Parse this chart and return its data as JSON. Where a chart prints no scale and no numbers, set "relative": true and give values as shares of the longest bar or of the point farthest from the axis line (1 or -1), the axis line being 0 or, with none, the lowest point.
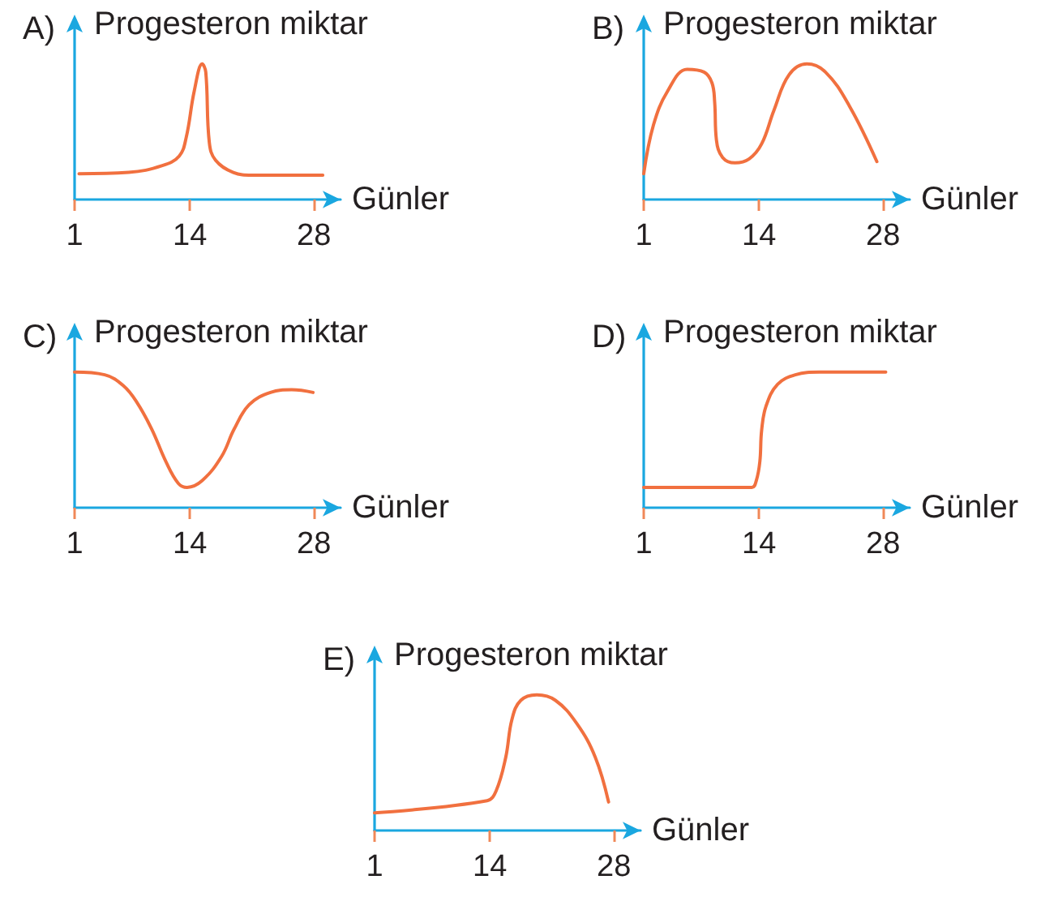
{
  "chart_data": [
    {
      "type": "line",
      "title": "A)",
      "ylabel": "Progesteron miktar",
      "xlabel": "Günler",
      "relative": true,
      "xlim": [
        1,
        31
      ],
      "xticks": [
        1,
        14,
        28
      ],
      "marker": "none",
      "line_style": "solid",
      "color": "#f1703f",
      "x": [
        1.5,
        7.1,
        10.9,
        12.8,
        13.6,
        14.5,
        15.4,
        15.8,
        16.2,
        16.9,
        18.9,
        21.0,
        29.0
      ],
      "values": [
        0.19,
        0.2,
        0.25,
        0.32,
        0.46,
        0.8,
        1.0,
        0.94,
        0.42,
        0.29,
        0.2,
        0.18,
        0.18
      ]
    },
    {
      "type": "line",
      "title": "B)",
      "ylabel": "Progesteron miktar",
      "xlabel": "Günler",
      "relative": true,
      "xlim": [
        1,
        31
      ],
      "xticks": [
        1,
        14,
        28
      ],
      "marker": "none",
      "line_style": "solid",
      "color": "#f1703f",
      "x": [
        1,
        2.1,
        3.7,
        5.9,
        7.8,
        8.7,
        9.0,
        9.2,
        9.9,
        11.3,
        12.9,
        14.3,
        15.7,
        17.4,
        19.4,
        21.5,
        24.2,
        27.3
      ],
      "values": [
        0.19,
        0.55,
        0.8,
        0.96,
        0.94,
        0.86,
        0.72,
        0.44,
        0.31,
        0.27,
        0.3,
        0.41,
        0.66,
        0.92,
        1.0,
        0.94,
        0.69,
        0.28
      ]
    },
    {
      "type": "line",
      "title": "C)",
      "ylabel": "Progesteron miktar",
      "xlabel": "Günler",
      "relative": true,
      "xlim": [
        1,
        31
      ],
      "xticks": [
        1,
        14,
        28
      ],
      "marker": "none",
      "line_style": "solid",
      "color": "#f1703f",
      "x": [
        1,
        4.4,
        6.5,
        8.0,
        9.7,
        11.3,
        12.7,
        13.7,
        15.4,
        17.6,
        19.0,
        20.7,
        23.1,
        25.5,
        27.9
      ],
      "values": [
        1.0,
        0.98,
        0.9,
        0.78,
        0.58,
        0.34,
        0.18,
        0.15,
        0.2,
        0.38,
        0.58,
        0.76,
        0.85,
        0.87,
        0.85
      ]
    },
    {
      "type": "line",
      "title": "D)",
      "ylabel": "Progesteron miktar",
      "xlabel": "Günler",
      "relative": true,
      "xlim": [
        1,
        31
      ],
      "xticks": [
        1,
        14,
        28
      ],
      "marker": "none",
      "line_style": "solid",
      "color": "#f1703f",
      "x": [
        1,
        13.2,
        13.7,
        14.1,
        14.3,
        14.8,
        16.1,
        18.1,
        20.8,
        28.3
      ],
      "values": [
        0.15,
        0.15,
        0.2,
        0.34,
        0.57,
        0.75,
        0.91,
        0.98,
        1.0,
        1.0
      ]
    },
    {
      "type": "line",
      "title": "E)",
      "ylabel": "Progesteron miktar",
      "xlabel": "Günler",
      "relative": true,
      "xlim": [
        1,
        31
      ],
      "xticks": [
        1,
        14,
        28
      ],
      "marker": "none",
      "line_style": "solid",
      "color": "#f1703f",
      "x": [
        1,
        13.7,
        14.7,
        15.8,
        16.5,
        17.5,
        19.3,
        21.4,
        23.8,
        25.9,
        27.4
      ],
      "values": [
        0.13,
        0.22,
        0.29,
        0.54,
        0.82,
        0.96,
        1.0,
        0.96,
        0.79,
        0.54,
        0.21
      ]
    }
  ]
}
